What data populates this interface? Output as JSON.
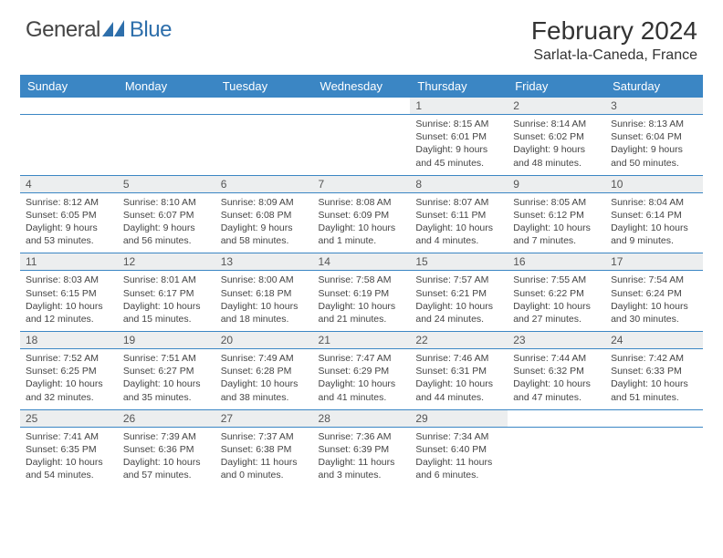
{
  "brand": {
    "part1": "General",
    "part2": "Blue"
  },
  "title": "February 2024",
  "location": "Sarlat-la-Caneda, France",
  "colors": {
    "header_bg": "#3b86c4",
    "daynum_bg": "#eceeef",
    "border": "#3b86c4",
    "logo_accent": "#2e6fab"
  },
  "day_headers": [
    "Sunday",
    "Monday",
    "Tuesday",
    "Wednesday",
    "Thursday",
    "Friday",
    "Saturday"
  ],
  "weeks": [
    [
      null,
      null,
      null,
      null,
      {
        "n": "1",
        "sr": "8:15 AM",
        "ss": "6:01 PM",
        "dl": "9 hours and 45 minutes."
      },
      {
        "n": "2",
        "sr": "8:14 AM",
        "ss": "6:02 PM",
        "dl": "9 hours and 48 minutes."
      },
      {
        "n": "3",
        "sr": "8:13 AM",
        "ss": "6:04 PM",
        "dl": "9 hours and 50 minutes."
      }
    ],
    [
      {
        "n": "4",
        "sr": "8:12 AM",
        "ss": "6:05 PM",
        "dl": "9 hours and 53 minutes."
      },
      {
        "n": "5",
        "sr": "8:10 AM",
        "ss": "6:07 PM",
        "dl": "9 hours and 56 minutes."
      },
      {
        "n": "6",
        "sr": "8:09 AM",
        "ss": "6:08 PM",
        "dl": "9 hours and 58 minutes."
      },
      {
        "n": "7",
        "sr": "8:08 AM",
        "ss": "6:09 PM",
        "dl": "10 hours and 1 minute."
      },
      {
        "n": "8",
        "sr": "8:07 AM",
        "ss": "6:11 PM",
        "dl": "10 hours and 4 minutes."
      },
      {
        "n": "9",
        "sr": "8:05 AM",
        "ss": "6:12 PM",
        "dl": "10 hours and 7 minutes."
      },
      {
        "n": "10",
        "sr": "8:04 AM",
        "ss": "6:14 PM",
        "dl": "10 hours and 9 minutes."
      }
    ],
    [
      {
        "n": "11",
        "sr": "8:03 AM",
        "ss": "6:15 PM",
        "dl": "10 hours and 12 minutes."
      },
      {
        "n": "12",
        "sr": "8:01 AM",
        "ss": "6:17 PM",
        "dl": "10 hours and 15 minutes."
      },
      {
        "n": "13",
        "sr": "8:00 AM",
        "ss": "6:18 PM",
        "dl": "10 hours and 18 minutes."
      },
      {
        "n": "14",
        "sr": "7:58 AM",
        "ss": "6:19 PM",
        "dl": "10 hours and 21 minutes."
      },
      {
        "n": "15",
        "sr": "7:57 AM",
        "ss": "6:21 PM",
        "dl": "10 hours and 24 minutes."
      },
      {
        "n": "16",
        "sr": "7:55 AM",
        "ss": "6:22 PM",
        "dl": "10 hours and 27 minutes."
      },
      {
        "n": "17",
        "sr": "7:54 AM",
        "ss": "6:24 PM",
        "dl": "10 hours and 30 minutes."
      }
    ],
    [
      {
        "n": "18",
        "sr": "7:52 AM",
        "ss": "6:25 PM",
        "dl": "10 hours and 32 minutes."
      },
      {
        "n": "19",
        "sr": "7:51 AM",
        "ss": "6:27 PM",
        "dl": "10 hours and 35 minutes."
      },
      {
        "n": "20",
        "sr": "7:49 AM",
        "ss": "6:28 PM",
        "dl": "10 hours and 38 minutes."
      },
      {
        "n": "21",
        "sr": "7:47 AM",
        "ss": "6:29 PM",
        "dl": "10 hours and 41 minutes."
      },
      {
        "n": "22",
        "sr": "7:46 AM",
        "ss": "6:31 PM",
        "dl": "10 hours and 44 minutes."
      },
      {
        "n": "23",
        "sr": "7:44 AM",
        "ss": "6:32 PM",
        "dl": "10 hours and 47 minutes."
      },
      {
        "n": "24",
        "sr": "7:42 AM",
        "ss": "6:33 PM",
        "dl": "10 hours and 51 minutes."
      }
    ],
    [
      {
        "n": "25",
        "sr": "7:41 AM",
        "ss": "6:35 PM",
        "dl": "10 hours and 54 minutes."
      },
      {
        "n": "26",
        "sr": "7:39 AM",
        "ss": "6:36 PM",
        "dl": "10 hours and 57 minutes."
      },
      {
        "n": "27",
        "sr": "7:37 AM",
        "ss": "6:38 PM",
        "dl": "11 hours and 0 minutes."
      },
      {
        "n": "28",
        "sr": "7:36 AM",
        "ss": "6:39 PM",
        "dl": "11 hours and 3 minutes."
      },
      {
        "n": "29",
        "sr": "7:34 AM",
        "ss": "6:40 PM",
        "dl": "11 hours and 6 minutes."
      },
      null,
      null
    ]
  ],
  "labels": {
    "sunrise": "Sunrise:",
    "sunset": "Sunset:",
    "daylight": "Daylight:"
  }
}
